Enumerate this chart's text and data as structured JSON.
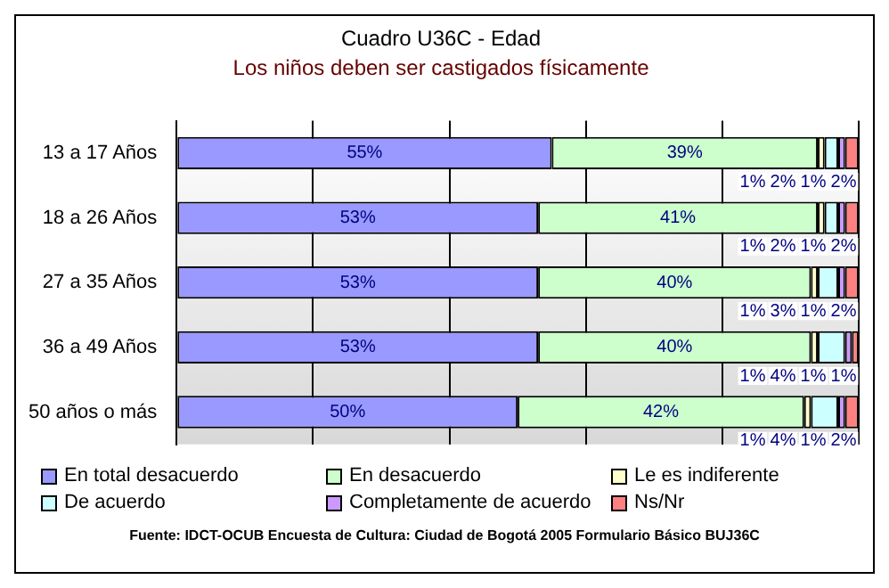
{
  "chart_data": {
    "type": "bar",
    "orientation": "horizontal",
    "stacked": true,
    "title": "Cuadro U36C - Edad",
    "subtitle": "Los niños deben ser castigados físicamente",
    "categories": [
      "13 a 17 Años",
      "18 a 26 Años",
      "27 a 35 Años",
      "36 a 49 Años",
      "50 años o más"
    ],
    "series": [
      {
        "name": "En total desacuerdo",
        "color": "#9999ff",
        "values": [
          55,
          53,
          53,
          53,
          50
        ],
        "value_labels": [
          "55%",
          "53%",
          "53%",
          "53%",
          "50%"
        ]
      },
      {
        "name": "En desacuerdo",
        "color": "#ccffcc",
        "values": [
          39,
          41,
          40,
          40,
          42
        ],
        "value_labels": [
          "39%",
          "41%",
          "40%",
          "40%",
          "42%"
        ]
      },
      {
        "name": "Le es indiferente",
        "color": "#ffffcc",
        "values": [
          1,
          1,
          1,
          1,
          1
        ],
        "value_labels": [
          "1%",
          "1%",
          "1%",
          "1%",
          "1%"
        ]
      },
      {
        "name": "De acuerdo",
        "color": "#ccffff",
        "values": [
          2,
          2,
          3,
          4,
          4
        ],
        "value_labels": [
          "2%",
          "2%",
          "3%",
          "4%",
          "4%"
        ]
      },
      {
        "name": "Completamente de acuerdo",
        "color": "#cc99ff",
        "values": [
          1,
          1,
          1,
          1,
          1
        ],
        "value_labels": [
          "1%",
          "1%",
          "1%",
          "1%",
          "1%"
        ]
      },
      {
        "name": "Ns/Nr",
        "color": "#ff8080",
        "values": [
          2,
          2,
          2,
          1,
          2
        ],
        "value_labels": [
          "2%",
          "2%",
          "2%",
          "1%",
          "2%"
        ]
      }
    ],
    "xlim": [
      0,
      100
    ],
    "xticks": [
      {
        "value": 0,
        "label": null
      },
      {
        "value": 20,
        "label": null
      },
      {
        "value": 40,
        "label": null
      },
      {
        "value": 60,
        "label": null
      },
      {
        "value": 80,
        "label": null
      },
      {
        "value": 100,
        "label": null
      }
    ],
    "grid": "x",
    "tick_labels": "y",
    "legend": "bottom",
    "annotations": [
      "Fuente: IDCT-OCUB Encuesta de Cultura: Ciudad de Bogotá 2005 Formulario Básico BUJ36C"
    ]
  }
}
